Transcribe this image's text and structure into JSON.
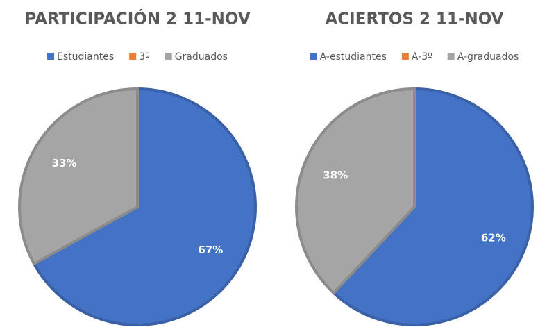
{
  "chart_data": [
    {
      "type": "pie",
      "title": "PARTICIPACIÓN 2 11-NOV",
      "categories": [
        "Estudiantes",
        "3º",
        "Graduados"
      ],
      "values": [
        67,
        0,
        33
      ],
      "value_labels": [
        "67%",
        null,
        "33%"
      ],
      "colors": [
        "#4472c4",
        "#ed7d31",
        "#a5a5a5"
      ],
      "legend": "top"
    },
    {
      "type": "pie",
      "title": "ACIERTOS 2 11-NOV",
      "categories": [
        "A-estudiantes",
        "A-3º",
        "A-graduados"
      ],
      "values": [
        62,
        0,
        38
      ],
      "value_labels": [
        "62%",
        null,
        "38%"
      ],
      "colors": [
        "#4472c4",
        "#ed7d31",
        "#a5a5a5"
      ],
      "legend": "top"
    }
  ]
}
